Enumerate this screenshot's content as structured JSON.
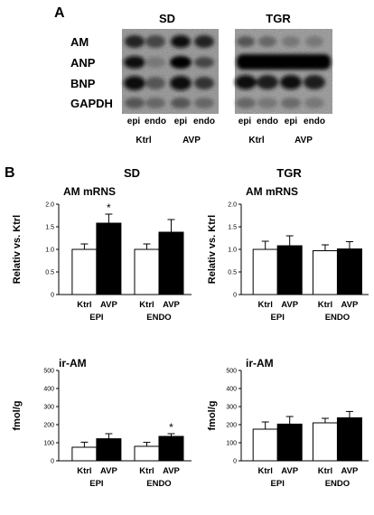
{
  "panel_a": {
    "label": "A",
    "groups": [
      "SD",
      "TGR"
    ],
    "rows": [
      "AM",
      "ANP",
      "BNP",
      "GAPDH"
    ],
    "lanes": [
      "epi",
      "endo",
      "epi",
      "endo"
    ],
    "conditions": [
      "Ktrl",
      "AVP"
    ]
  },
  "panel_b": {
    "label": "B",
    "groups": [
      "SD",
      "TGR"
    ]
  },
  "chart_data": [
    {
      "type": "bar",
      "group": "SD",
      "title": "AM mRNS",
      "ylabel": "Relativ vs. Ktrl",
      "ylim": [
        0,
        2.0
      ],
      "yticks": [
        "0",
        "0.5",
        "1.0",
        "1.5",
        "2.0"
      ],
      "tick_decimals": 1,
      "categories": [
        "EPI",
        "ENDO"
      ],
      "conditions": [
        "Ktrl",
        "AVP"
      ],
      "series": [
        {
          "name": "Ktrl",
          "values": [
            1.0,
            1.0
          ],
          "errors": [
            0.12,
            0.12
          ]
        },
        {
          "name": "AVP",
          "values": [
            1.58,
            1.38
          ],
          "errors": [
            0.2,
            0.28
          ]
        }
      ],
      "annotations": [
        {
          "text": "*",
          "category": "EPI",
          "series": "AVP"
        }
      ]
    },
    {
      "type": "bar",
      "group": "TGR",
      "title": "AM mRNS",
      "ylabel": "Relativ vs. Ktrl",
      "ylim": [
        0,
        2.0
      ],
      "yticks": [
        "0",
        "0.5",
        "1.0",
        "1.5",
        "2.0"
      ],
      "tick_decimals": 1,
      "categories": [
        "EPI",
        "ENDO"
      ],
      "conditions": [
        "Ktrl",
        "AVP"
      ],
      "series": [
        {
          "name": "Ktrl",
          "values": [
            1.0,
            0.97
          ],
          "errors": [
            0.18,
            0.13
          ]
        },
        {
          "name": "AVP",
          "values": [
            1.08,
            1.01
          ],
          "errors": [
            0.22,
            0.16
          ]
        }
      ],
      "annotations": []
    },
    {
      "type": "bar",
      "group": "SD",
      "title": "ir-AM",
      "ylabel": "fmol/g",
      "ylim": [
        0,
        500
      ],
      "yticks": [
        "0",
        "100",
        "200",
        "300",
        "400",
        "500"
      ],
      "tick_decimals": 0,
      "categories": [
        "EPI",
        "ENDO"
      ],
      "conditions": [
        "Ktrl",
        "AVP"
      ],
      "series": [
        {
          "name": "Ktrl",
          "values": [
            75,
            80
          ],
          "errors": [
            28,
            22
          ]
        },
        {
          "name": "AVP",
          "values": [
            122,
            135
          ],
          "errors": [
            28,
            15
          ]
        }
      ],
      "annotations": [
        {
          "text": "*",
          "category": "ENDO",
          "series": "AVP"
        }
      ]
    },
    {
      "type": "bar",
      "group": "TGR",
      "title": "ir-AM",
      "ylabel": "fmol/g",
      "ylim": [
        0,
        500
      ],
      "yticks": [
        "0",
        "100",
        "200",
        "300",
        "400",
        "500"
      ],
      "tick_decimals": 0,
      "categories": [
        "EPI",
        "ENDO"
      ],
      "conditions": [
        "Ktrl",
        "AVP"
      ],
      "series": [
        {
          "name": "Ktrl",
          "values": [
            175,
            210
          ],
          "errors": [
            40,
            25
          ]
        },
        {
          "name": "AVP",
          "values": [
            203,
            238
          ],
          "errors": [
            42,
            35
          ]
        }
      ],
      "annotations": []
    }
  ]
}
